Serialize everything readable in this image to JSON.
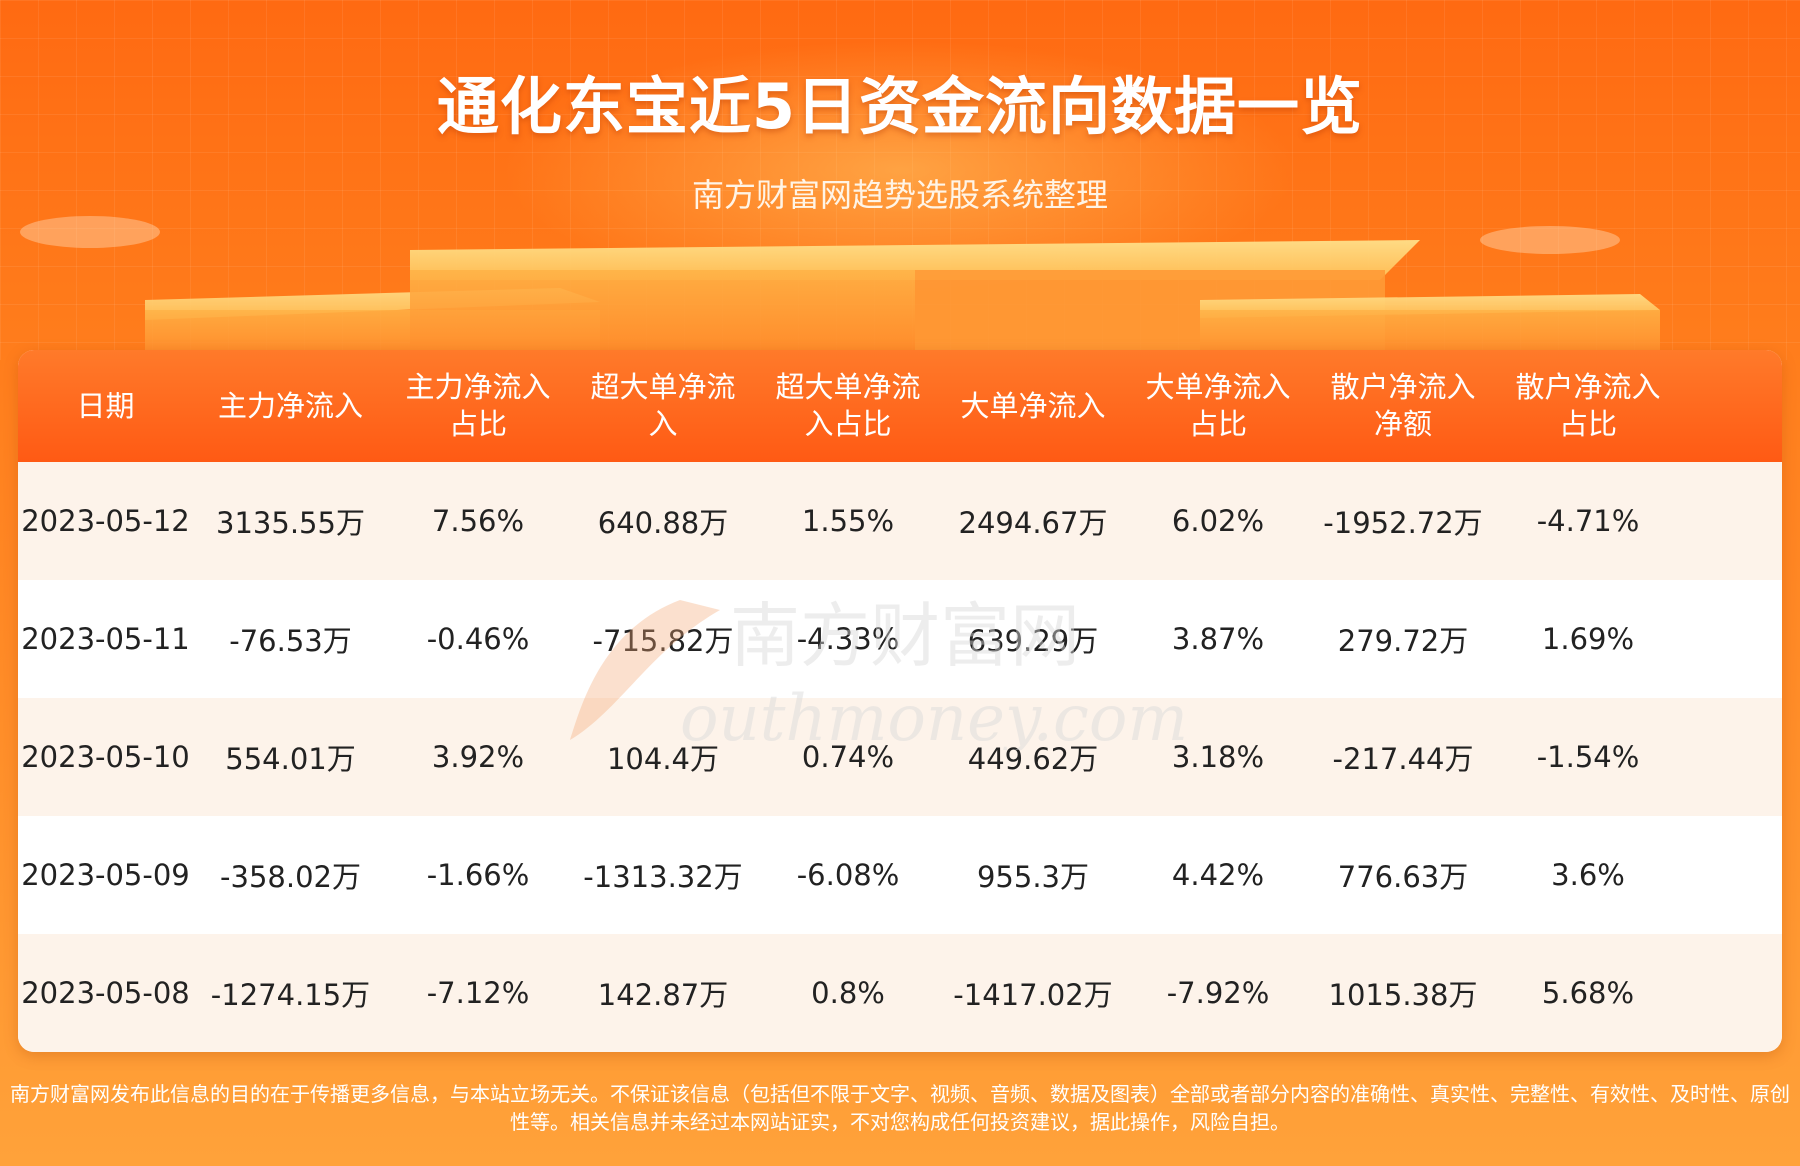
{
  "header": {
    "title": "通化东宝近5日资金流向数据一览",
    "subtitle": "南方财富网趋势选股系统整理"
  },
  "table": {
    "headers": [
      [
        "日期"
      ],
      [
        "主力净流入"
      ],
      [
        "主力净流入",
        "占比"
      ],
      [
        "超大单净流",
        "入"
      ],
      [
        "超大单净流",
        "入占比"
      ],
      [
        "大单净流入"
      ],
      [
        "大单净流入",
        "占比"
      ],
      [
        "散户净流入",
        "净额"
      ],
      [
        "散户净流入",
        "占比"
      ],
      []
    ],
    "rows": [
      [
        "2023-05-12",
        "3135.55万",
        "7.56%",
        "640.88万",
        "1.55%",
        "2494.67万",
        "6.02%",
        "-1952.72万",
        "-4.71%"
      ],
      [
        "2023-05-11",
        "-76.53万",
        "-0.46%",
        "-715.82万",
        "-4.33%",
        "639.29万",
        "3.87%",
        "279.72万",
        "1.69%"
      ],
      [
        "2023-05-10",
        "554.01万",
        "3.92%",
        "104.4万",
        "0.74%",
        "449.62万",
        "3.18%",
        "-217.44万",
        "-1.54%"
      ],
      [
        "2023-05-09",
        "-358.02万",
        "-1.66%",
        "-1313.32万",
        "-6.08%",
        "955.3万",
        "4.42%",
        "776.63万",
        "3.6%"
      ],
      [
        "2023-05-08",
        "-1274.15万",
        "-7.12%",
        "142.87万",
        "0.8%",
        "-1417.02万",
        "-7.92%",
        "1015.38万",
        "5.68%"
      ]
    ]
  },
  "watermark": {
    "line1": "南方财富网",
    "line2": "outhmoney.com"
  },
  "footer": {
    "disclaimer": "南方财富网发布此信息的目的在于传播更多信息，与本站立场无关。不保证该信息（包括但不限于文字、视频、音频、数据及图表）全部或者部分内容的准确性、真实性、完整性、有效性、及时性、原创性等。相关信息并未经过本网站证实，不对您构成任何投资建议，据此操作，风险自担。"
  },
  "colors": {
    "header_bg": "#ff5a14",
    "page_bg": "#ff7d1c",
    "row_alt": "#fdf3ea"
  }
}
